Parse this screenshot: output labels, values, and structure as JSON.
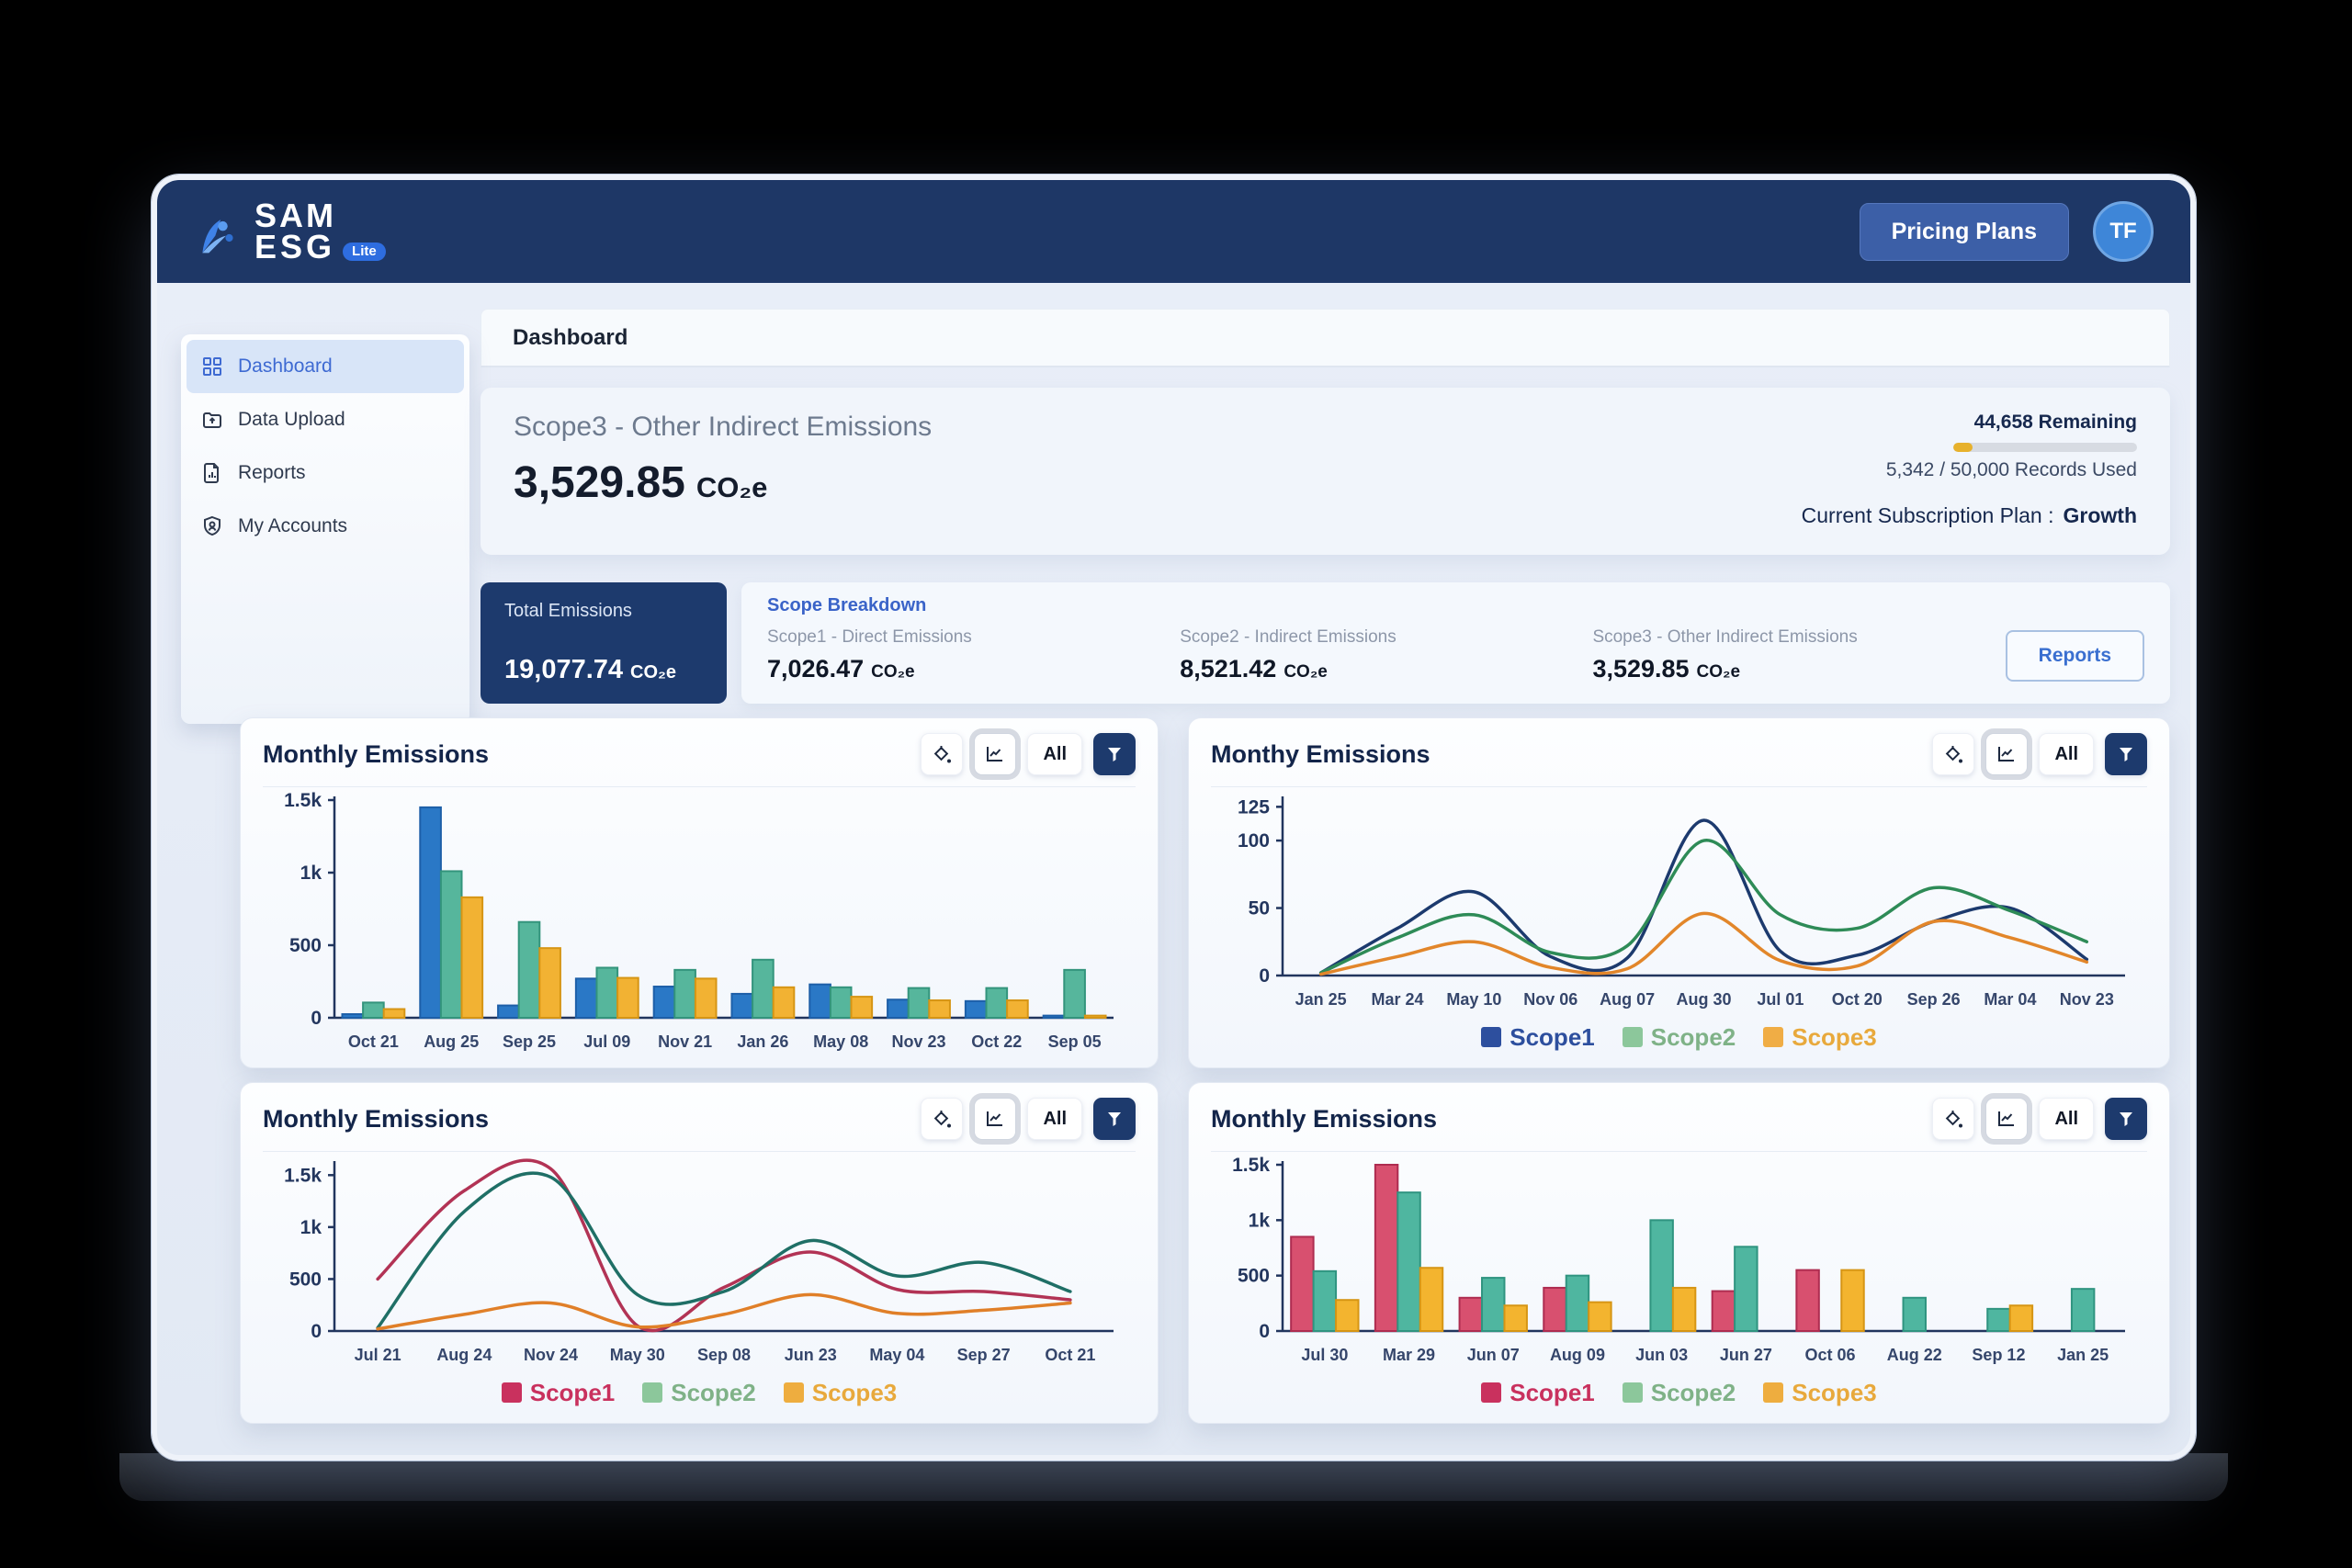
{
  "header": {
    "logo": {
      "line1": "SAM",
      "line2": "ESG",
      "badge": "Lite"
    },
    "pricing_button": "Pricing Plans",
    "avatar_initials": "TF"
  },
  "page_title": "Dashboard",
  "sidebar": {
    "items": [
      {
        "label": "Dashboard",
        "icon": "dashboard-grid-icon",
        "active": true
      },
      {
        "label": "Data Upload",
        "icon": "folder-upload-icon",
        "active": false
      },
      {
        "label": "Reports",
        "icon": "report-file-icon",
        "active": false
      },
      {
        "label": "My Accounts",
        "icon": "shield-user-icon",
        "active": false
      }
    ]
  },
  "hero": {
    "title": "Scope3 - Other Indirect Emissions",
    "value": "3,529.85",
    "unit": "CO₂e",
    "usage": {
      "remaining": "44,658 Remaining",
      "used": "5,342 / 50,000 Records Used",
      "percent_used": 10.7,
      "bar_color": "#e7b12c"
    },
    "plan_label": "Current Subscription Plan :",
    "plan_value": "Growth"
  },
  "summary": {
    "total": {
      "label": "Total Emissions",
      "value": "19,077.74",
      "unit": "CO₂e"
    },
    "breakdown_title": "Scope Breakdown",
    "scopes": [
      {
        "label": "Scope1 - Direct Emissions",
        "value": "7,026.47",
        "unit": "CO₂e"
      },
      {
        "label": "Scope2 - Indirect Emissions",
        "value": "8,521.42",
        "unit": "CO₂e"
      },
      {
        "label": "Scope3 - Other Indirect Emissions",
        "value": "3,529.85",
        "unit": "CO₂e"
      }
    ],
    "reports_button": "Reports"
  },
  "chart_toolbar": {
    "all_label": "All",
    "icons": [
      "paint-bucket-icon",
      "line-chart-icon",
      "funnel-icon"
    ]
  },
  "chart_data": [
    {
      "type": "bar",
      "title": "Monthly Emissions",
      "legend_position": "none",
      "ylim": [
        0,
        1500
      ],
      "yticks": [
        {
          "label": "1.5k",
          "value": 1500
        },
        {
          "label": "1k",
          "value": 1000
        },
        {
          "label": "500",
          "value": 500
        },
        {
          "label": "0",
          "value": 0
        }
      ],
      "categories": [
        "Oct 21",
        "Aug 25",
        "Sep 25",
        "Jul 09",
        "Nov 21",
        "Jan 26",
        "May 08",
        "Nov 23",
        "Oct 22",
        "Sep 05"
      ],
      "series": [
        {
          "name": "Scope1",
          "color": "#2a78c6",
          "stroke": "#1d5fa8",
          "values": [
            25,
            1450,
            85,
            270,
            215,
            165,
            230,
            125,
            115,
            15
          ]
        },
        {
          "name": "Scope2",
          "color": "#56b69c",
          "stroke": "#33947c",
          "values": [
            105,
            1010,
            660,
            345,
            330,
            400,
            210,
            205,
            205,
            330
          ]
        },
        {
          "name": "Scope3",
          "color": "#f2b233",
          "stroke": "#d69514",
          "values": [
            60,
            830,
            480,
            275,
            270,
            210,
            145,
            120,
            120,
            15
          ]
        }
      ]
    },
    {
      "type": "line",
      "title": "Monthy Emissions",
      "legend_position": "bottom",
      "ylim": [
        0,
        130
      ],
      "yticks": [
        {
          "label": "125",
          "value": 125
        },
        {
          "label": "100",
          "value": 100
        },
        {
          "label": "50",
          "value": 50
        },
        {
          "label": "0",
          "value": 0
        }
      ],
      "categories": [
        "Jan 25",
        "Mar 24",
        "May 10",
        "Nov 06",
        "Aug 07",
        "Aug 30",
        "Jul 01",
        "Oct 20",
        "Sep 26",
        "Mar 04",
        "Nov 23"
      ],
      "series": [
        {
          "name": "Scope1",
          "color": "#1c3a6e",
          "legend_color": "#2d4f9e",
          "values": [
            2,
            35,
            62,
            14,
            13,
            115,
            18,
            15,
            40,
            50,
            12
          ]
        },
        {
          "name": "Scope2",
          "color": "#2e8b57",
          "legend_color": "#8cc79b",
          "label_color": "#7fb287",
          "values": [
            2,
            28,
            45,
            17,
            22,
            100,
            45,
            35,
            65,
            48,
            25
          ]
        },
        {
          "name": "Scope3",
          "color": "#e2862a",
          "legend_color": "#f0ad45",
          "label_color": "#e8a93c",
          "values": [
            1,
            14,
            25,
            6,
            5,
            46,
            11,
            7,
            40,
            28,
            10
          ]
        }
      ]
    },
    {
      "type": "line",
      "title": "Monthly Emissions",
      "legend_position": "bottom",
      "ylim": [
        0,
        1600
      ],
      "yticks": [
        {
          "label": "1.5k",
          "value": 1500
        },
        {
          "label": "1k",
          "value": 1000
        },
        {
          "label": "500",
          "value": 500
        },
        {
          "label": "0",
          "value": 0
        }
      ],
      "categories": [
        "Jul 21",
        "Aug 24",
        "Nov 24",
        "May 30",
        "Sep 08",
        "Jun 23",
        "May 04",
        "Sep 27",
        "Oct 21"
      ],
      "series": [
        {
          "name": "Scope1",
          "color": "#b23355",
          "legend_color": "#c9315e",
          "values": [
            500,
            1350,
            1560,
            50,
            420,
            760,
            400,
            380,
            300
          ]
        },
        {
          "name": "Scope2",
          "color": "#1f6f66",
          "legend_color": "#8cc79b",
          "label_color": "#7fb287",
          "values": [
            30,
            1150,
            1480,
            350,
            380,
            870,
            530,
            660,
            380
          ]
        },
        {
          "name": "Scope3",
          "color": "#e07f28",
          "legend_color": "#eead3f",
          "label_color": "#e8a93c",
          "values": [
            20,
            160,
            270,
            40,
            160,
            350,
            170,
            200,
            270
          ]
        }
      ]
    },
    {
      "type": "bar",
      "title": "Monthly Emissions",
      "legend_position": "bottom",
      "ylim": [
        0,
        1500
      ],
      "yticks": [
        {
          "label": "1.5k",
          "value": 1500
        },
        {
          "label": "1k",
          "value": 1000
        },
        {
          "label": "500",
          "value": 500
        },
        {
          "label": "0",
          "value": 0
        }
      ],
      "categories": [
        "Jul 30",
        "Mar 29",
        "Jun 07",
        "Aug 09",
        "Jun 03",
        "Jun 27",
        "Oct 06",
        "Aug 22",
        "Sep 12",
        "Jan 25"
      ],
      "series": [
        {
          "name": "Scope1",
          "color": "#d8506f",
          "stroke": "#ae2c50",
          "legend_color": "#c9315e",
          "values": [
            850,
            1500,
            300,
            390,
            0,
            360,
            550,
            0,
            0,
            0
          ]
        },
        {
          "name": "Scope2",
          "color": "#4fb6a0",
          "stroke": "#2f9480",
          "legend_color": "#8cc79b",
          "label_color": "#7fb287",
          "values": [
            540,
            1250,
            480,
            500,
            1000,
            760,
            0,
            300,
            200,
            380
          ]
        },
        {
          "name": "Scope3",
          "color": "#f3b42f",
          "stroke": "#d69514",
          "legend_color": "#eead3f",
          "label_color": "#e8a93c",
          "values": [
            280,
            570,
            230,
            260,
            390,
            0,
            550,
            0,
            230,
            0
          ]
        }
      ]
    }
  ]
}
